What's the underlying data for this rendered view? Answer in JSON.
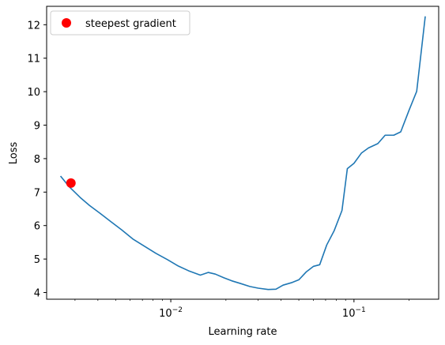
{
  "chart_data": {
    "type": "line",
    "xscale": "log",
    "xlabel": "Learning rate",
    "ylabel": "Loss",
    "xlim": [
      0.0021,
      0.29
    ],
    "ylim": [
      3.8,
      12.55
    ],
    "x_major_ticks": [
      {
        "value": 0.01,
        "label": "10",
        "exp": "−2"
      },
      {
        "value": 0.1,
        "label": "10",
        "exp": "−1"
      }
    ],
    "y_ticks": [
      4,
      5,
      6,
      7,
      8,
      9,
      10,
      11,
      12
    ],
    "grid": false,
    "legend": {
      "placement": "upper-left",
      "entries": [
        {
          "label": "steepest gradient",
          "marker": "circle",
          "color": "#ff0000"
        }
      ]
    },
    "series": [
      {
        "color": "#1f77b4",
        "x": [
          0.0025,
          0.0028,
          0.0032,
          0.0036,
          0.0041,
          0.0047,
          0.0054,
          0.0062,
          0.0072,
          0.0083,
          0.0096,
          0.011,
          0.0125,
          0.0145,
          0.016,
          0.0175,
          0.0195,
          0.0215,
          0.024,
          0.027,
          0.03,
          0.034,
          0.0375,
          0.041,
          0.046,
          0.05,
          0.055,
          0.06,
          0.065,
          0.071,
          0.078,
          0.086,
          0.092,
          0.1,
          0.11,
          0.12,
          0.135,
          0.148,
          0.165,
          0.18,
          0.2,
          0.22,
          0.245
        ],
        "y": [
          7.48,
          7.15,
          6.84,
          6.6,
          6.37,
          6.12,
          5.87,
          5.6,
          5.38,
          5.17,
          4.98,
          4.79,
          4.65,
          4.52,
          4.6,
          4.55,
          4.44,
          4.35,
          4.27,
          4.18,
          4.13,
          4.09,
          4.1,
          4.22,
          4.3,
          4.38,
          4.62,
          4.78,
          4.83,
          5.42,
          5.85,
          6.45,
          7.7,
          7.86,
          8.17,
          8.32,
          8.45,
          8.7,
          8.7,
          8.8,
          9.45,
          10.01,
          12.25
        ]
      },
      {
        "label": "steepest gradient",
        "color": "#ff0000",
        "marker": "circle",
        "x": [
          0.00285
        ],
        "y": [
          7.27
        ]
      }
    ]
  }
}
